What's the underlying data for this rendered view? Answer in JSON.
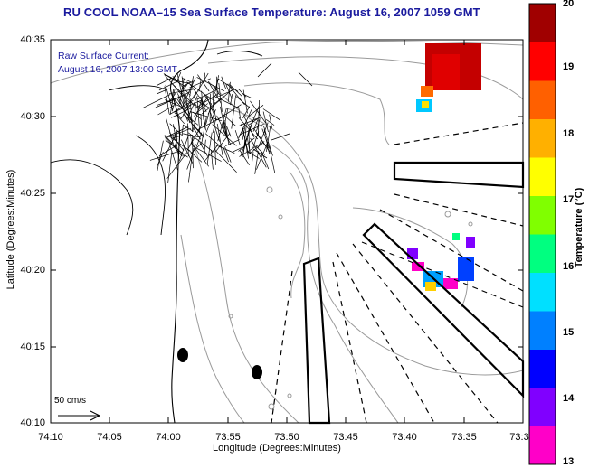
{
  "title": "RU COOL  NOAA–15  Sea Surface Temperature:  August 16, 2007 1059 GMT",
  "overlay": {
    "line1": "Raw Surface Current:",
    "line2": "August 16, 2007 13:00 GMT"
  },
  "scale_label": "50 cm/s",
  "y_axis": {
    "title": "Latitude (Degrees:Minutes)",
    "ticks": [
      "40:35",
      "40:30",
      "40:25",
      "40:20",
      "40:15",
      "40:10"
    ]
  },
  "x_axis": {
    "title": "Longitude (Degrees:Minutes)",
    "ticks": [
      "74:10",
      "74:05",
      "74:00",
      "73:55",
      "73:50",
      "73:45",
      "73:40",
      "73:35",
      "73:3"
    ]
  },
  "colorbar": {
    "title": "Temperature (°C)",
    "ticks": [
      "20",
      "19",
      "18",
      "17",
      "16",
      "15",
      "14",
      "13"
    ],
    "min": 13,
    "max": 20,
    "colors": [
      "#ff00c8",
      "#8000ff",
      "#0000ff",
      "#0080ff",
      "#00e0ff",
      "#00ff80",
      "#80ff00",
      "#ffff00",
      "#ffb000",
      "#ff6000",
      "#ff0000",
      "#a00000"
    ]
  }
}
